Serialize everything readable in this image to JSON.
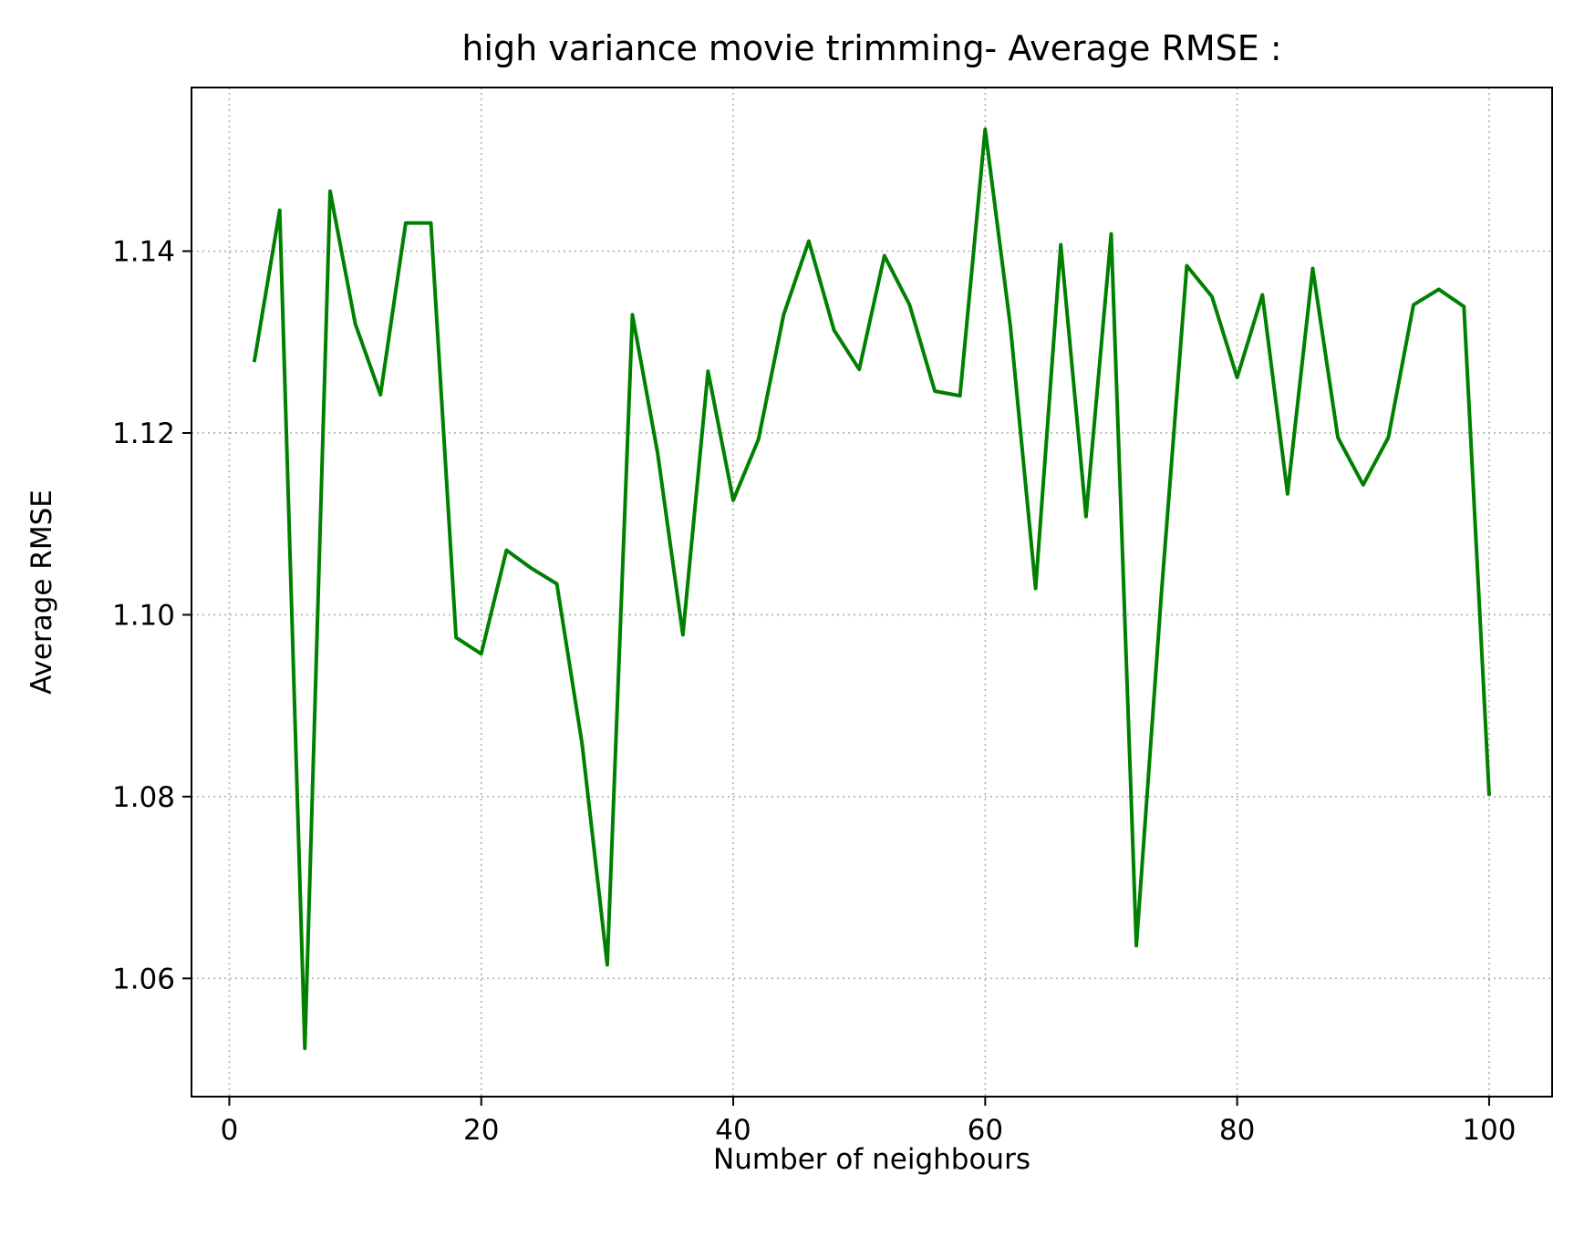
{
  "chart_data": {
    "type": "line",
    "title": "high variance movie trimming- Average RMSE :",
    "xlabel": "Number of neighbours",
    "ylabel": "Average RMSE",
    "xlim": [
      -3,
      105
    ],
    "ylim": [
      1.047,
      1.158
    ],
    "xticks": [
      0,
      20,
      40,
      60,
      80,
      100
    ],
    "xtick_labels": [
      "0",
      "20",
      "40",
      "60",
      "80",
      "100"
    ],
    "yticks": [
      1.06,
      1.08,
      1.1,
      1.12,
      1.14
    ],
    "ytick_labels": [
      "1.06",
      "1.08",
      "1.10",
      "1.12",
      "1.14"
    ],
    "grid": true,
    "line_color": "#008000",
    "grid_color": "#b0b0b0",
    "series": [
      {
        "x": [
          2,
          4,
          6,
          8,
          10,
          12,
          14,
          16,
          18,
          20,
          22,
          24,
          26,
          28,
          30,
          32,
          34,
          36,
          38,
          40,
          42,
          44,
          46,
          48,
          50,
          52,
          54,
          56,
          58,
          60,
          62,
          64,
          66,
          68,
          70,
          72,
          74,
          76,
          78,
          80,
          82,
          84,
          86,
          88,
          90,
          92,
          94,
          96,
          98,
          100
        ],
        "values": [
          1.128,
          1.1445,
          1.0523,
          1.1466,
          1.132,
          1.1242,
          1.1431,
          1.1431,
          1.0975,
          1.0957,
          1.1071,
          1.1051,
          1.1034,
          1.0858,
          1.0615,
          1.133,
          1.1178,
          1.0978,
          1.1268,
          1.1126,
          1.1193,
          1.133,
          1.1411,
          1.1313,
          1.127,
          1.1395,
          1.1341,
          1.1246,
          1.1241,
          1.1534,
          1.1317,
          1.1029,
          1.1407,
          1.1108,
          1.1419,
          1.0636,
          1.1025,
          1.1384,
          1.135,
          1.1261,
          1.1352,
          1.1133,
          1.1381,
          1.1195,
          1.1143,
          1.1195,
          1.1341,
          1.1358,
          1.1339,
          1.0803
        ]
      }
    ]
  }
}
